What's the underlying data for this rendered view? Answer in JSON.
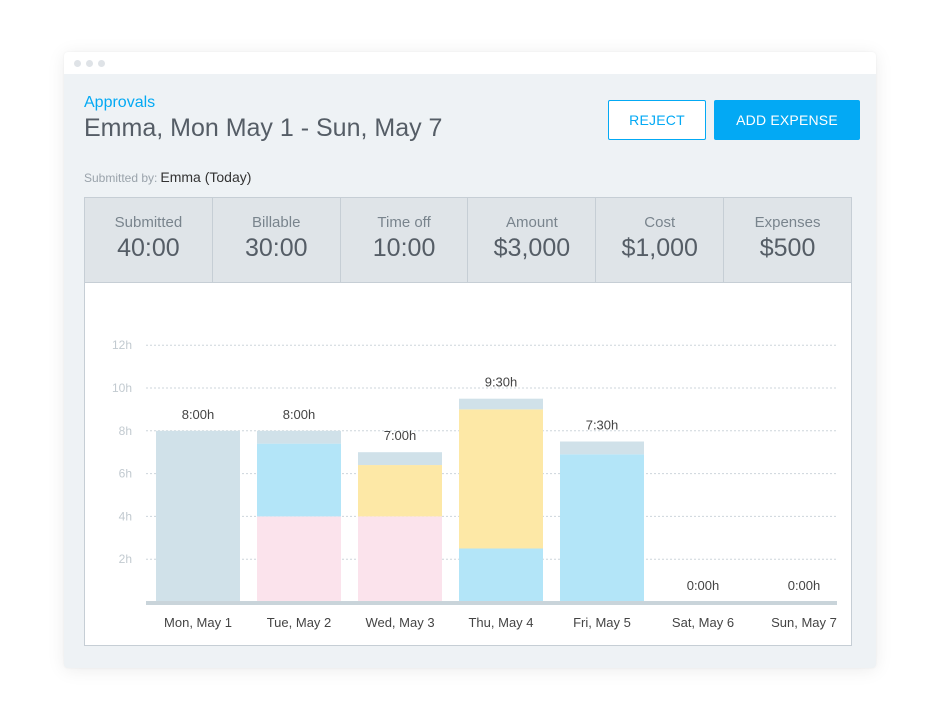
{
  "header": {
    "breadcrumb": "Approvals",
    "title": "Emma, Mon May 1 - Sun, May 7",
    "submitted_label": "Submitted by:",
    "submitted_value": "Emma (Today)"
  },
  "actions": {
    "reject_label": "REJECT",
    "add_expense_label": "ADD EXPENSE"
  },
  "stats": [
    {
      "label": "Submitted",
      "value": "40:00"
    },
    {
      "label": "Billable",
      "value": "30:00"
    },
    {
      "label": "Time off",
      "value": "10:00"
    },
    {
      "label": "Amount",
      "value": "$3,000"
    },
    {
      "label": "Cost",
      "value": "$1,000"
    },
    {
      "label": "Expenses",
      "value": "$500"
    }
  ],
  "colors": {
    "accent": "#03a9f4",
    "gray": "#d0e1e9",
    "blue": "#b3e5f8",
    "pink": "#fbe3ec",
    "yellow": "#fde8a6"
  },
  "chart_data": {
    "type": "bar",
    "stacked": true,
    "categories": [
      "Mon, May 1",
      "Tue, May 2",
      "Wed, May 3",
      "Thu, May 4",
      "Fri, May 5",
      "Sat, May 6",
      "Sun, May 7"
    ],
    "totals": [
      "8:00h",
      "8:00h",
      "7:00h",
      "9:30h",
      "7:30h",
      "0:00h",
      "0:00h"
    ],
    "y_ticks": [
      "2h",
      "4h",
      "6h",
      "8h",
      "10h",
      "12h"
    ],
    "ylim": [
      0,
      12
    ],
    "grid": true,
    "series": [
      {
        "color": "#fbe3ec",
        "values": [
          0,
          4,
          4,
          0,
          0,
          0,
          0
        ]
      },
      {
        "color": "#b3e5f8",
        "values": [
          0,
          3.4,
          0,
          2.5,
          6.9,
          0,
          0
        ]
      },
      {
        "color": "#fde8a6",
        "values": [
          0,
          0,
          2.4,
          6.5,
          0,
          0,
          0
        ]
      },
      {
        "color": "#d0e1e9",
        "values": [
          8,
          0.6,
          0.6,
          0.5,
          0.6,
          0,
          0
        ]
      }
    ]
  }
}
